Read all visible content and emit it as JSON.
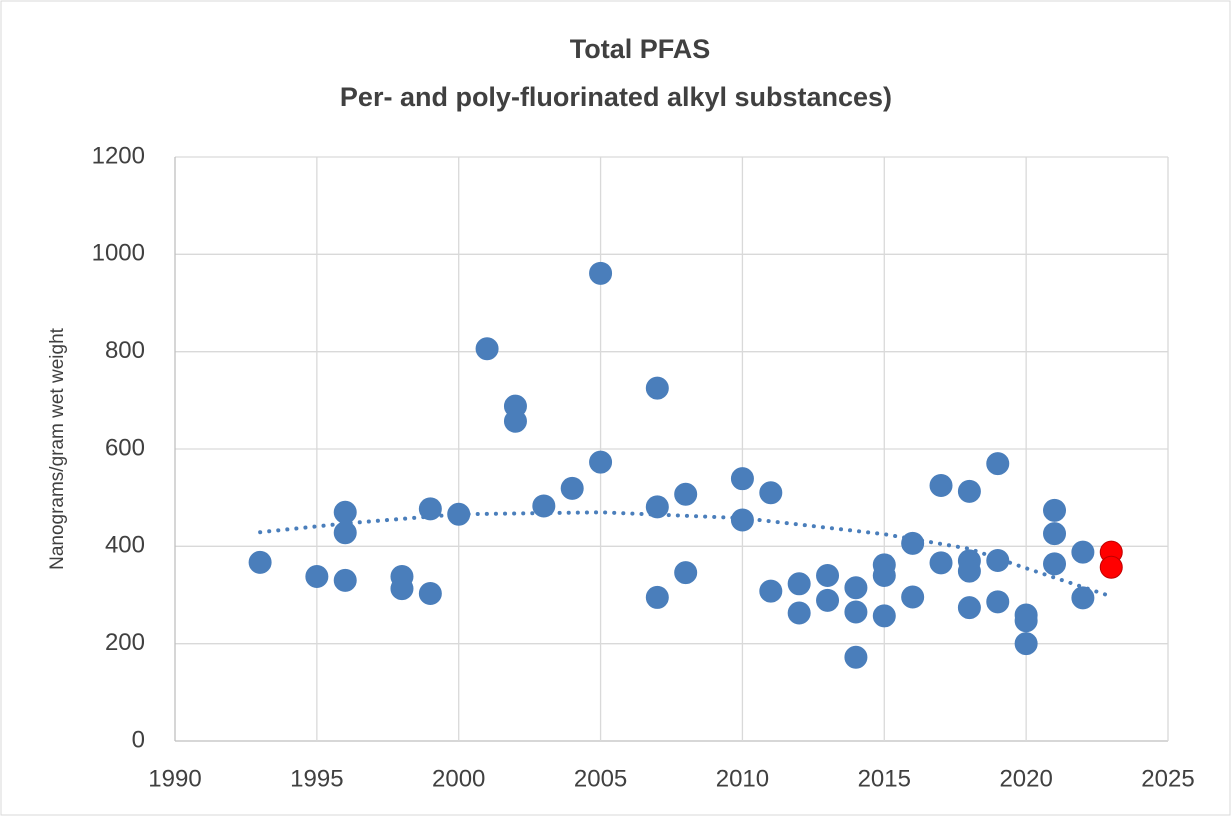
{
  "chart_data": {
    "type": "scatter",
    "title": [
      "Total PFAS",
      "Per- and poly-fluorinated alkyl substances)"
    ],
    "y_label": "Nanograms/gram wet weight",
    "xlim": [
      1990,
      2025
    ],
    "xticks": [
      1990,
      1995,
      2000,
      2005,
      2010,
      2015,
      2020,
      2025
    ],
    "ylim": [
      0,
      1200
    ],
    "yticks": [
      0,
      200,
      400,
      600,
      800,
      1000,
      1200
    ],
    "grid": true,
    "series": [
      {
        "color": "#4a7ebb",
        "x": [
          1993,
          1995,
          1996,
          1996,
          1996,
          1998,
          1998,
          1999,
          1999,
          2000,
          2001,
          2002,
          2002,
          2003,
          2004,
          2005,
          2005,
          2007,
          2007,
          2007,
          2008,
          2008,
          2010,
          2010,
          2011,
          2011,
          2012,
          2012,
          2013,
          2013,
          2014,
          2014,
          2014,
          2015,
          2015,
          2015,
          2016,
          2016,
          2017,
          2017,
          2018,
          2018,
          2018,
          2018,
          2019,
          2019,
          2019,
          2020,
          2020,
          2020,
          2021,
          2021,
          2021,
          2022,
          2022
        ],
        "values": [
          367,
          338,
          470,
          428,
          330,
          338,
          313,
          477,
          303,
          466,
          806,
          688,
          657,
          483,
          519,
          961,
          573,
          725,
          481,
          295,
          507,
          346,
          539,
          454,
          510,
          308,
          323,
          263,
          340,
          289,
          315,
          265,
          172,
          362,
          340,
          257,
          406,
          296,
          525,
          366,
          513,
          370,
          349,
          274,
          570,
          371,
          286,
          259,
          247,
          200,
          474,
          426,
          364,
          388,
          294
        ]
      },
      {
        "color": "#ff0000",
        "x": [
          2023,
          2023
        ],
        "values": [
          388,
          357
        ]
      }
    ],
    "trendline": {
      "color": "#4a7ebb",
      "style": "dotted",
      "x": [
        1993,
        1996,
        2000,
        2005,
        2010,
        2015,
        2018,
        2020,
        2023
      ],
      "values": [
        429,
        447,
        466,
        470,
        458,
        425,
        395,
        355,
        297
      ]
    }
  }
}
